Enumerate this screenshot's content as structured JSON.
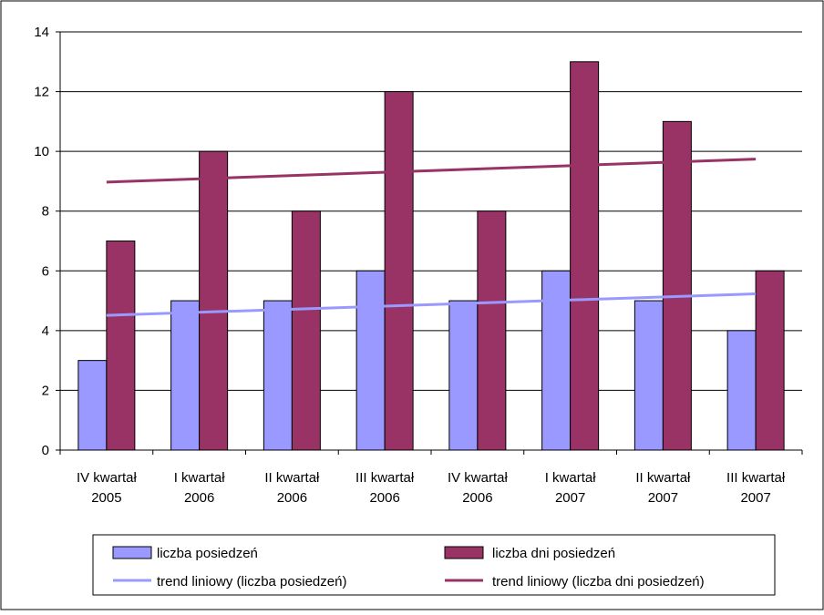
{
  "chart_data": {
    "type": "bar",
    "categories": [
      [
        "IV kwartał",
        "2005"
      ],
      [
        "I kwartał",
        "2006"
      ],
      [
        "II kwartał",
        "2006"
      ],
      [
        "III kwartał",
        "2006"
      ],
      [
        "IV kwartał",
        "2006"
      ],
      [
        "I kwartał",
        "2007"
      ],
      [
        "II kwartał",
        "2007"
      ],
      [
        "III kwartał",
        "2007"
      ]
    ],
    "series": [
      {
        "name": "liczba posiedzeń",
        "values": [
          3,
          5,
          5,
          6,
          5,
          6,
          5,
          4
        ],
        "color": "#9999ff"
      },
      {
        "name": "liczba dni posiedzeń",
        "values": [
          7,
          10,
          8,
          12,
          8,
          13,
          11,
          6
        ],
        "color": "#993366"
      }
    ],
    "trendlines": [
      {
        "name": "trend liniowy (liczba posiedzeń)",
        "type": "linear",
        "start": 4.51,
        "end": 5.23,
        "color": "#9999ff"
      },
      {
        "name": "trend liniowy (liczba dni posiedzeń)",
        "type": "linear",
        "start": 8.97,
        "end": 9.74,
        "color": "#993366"
      }
    ],
    "title": "",
    "xlabel": "",
    "ylabel": "",
    "ylim": [
      0,
      14
    ],
    "yticks": [
      0,
      2,
      4,
      6,
      8,
      10,
      12,
      14
    ],
    "grid": true,
    "legend": "bottom"
  }
}
